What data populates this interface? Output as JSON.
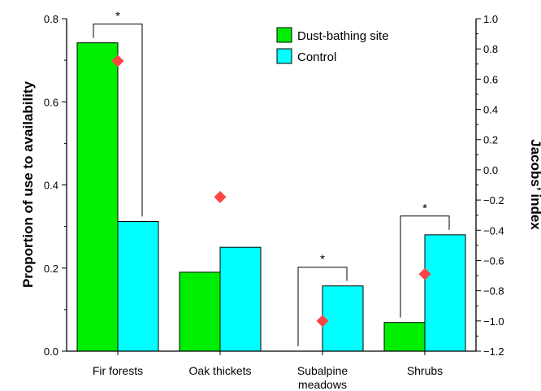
{
  "chart_data": {
    "type": "bar",
    "categories": [
      [
        "Fir forests"
      ],
      [
        "Oak thickets"
      ],
      [
        "Subalpine",
        "meadows"
      ],
      [
        "Shrubs"
      ]
    ],
    "series": [
      {
        "name": "Dust-bathing site",
        "values": [
          0.742,
          0.19,
          0,
          0.069
        ],
        "color": "#00ee00"
      },
      {
        "name": "Control",
        "values": [
          0.312,
          0.25,
          0.157,
          0.28
        ],
        "color": "#00ffff"
      }
    ],
    "jacobs_index": {
      "values": [
        0.72,
        -0.18,
        -1.0,
        -0.69
      ],
      "color": "#ff4444",
      "marker": "diamond"
    },
    "ylabel": "Proportion of use to availability",
    "y2label": "Jacobs’ index",
    "ylim": [
      0,
      0.8
    ],
    "y2lim": [
      -1.2,
      1.0
    ],
    "yticks": [
      "0.0",
      "0.2",
      "0.4",
      "0.6",
      "0.8"
    ],
    "y2ticks": [
      "-1.2",
      "-1.0",
      "-0.8",
      "-0.6",
      "-0.4",
      "-0.2",
      "0.0",
      "0.2",
      "0.4",
      "0.6",
      "0.8",
      "1.0"
    ],
    "significance": {
      "categories": [
        0,
        2,
        3
      ],
      "label": "*"
    },
    "legend_position": "top-right",
    "grid": false
  }
}
